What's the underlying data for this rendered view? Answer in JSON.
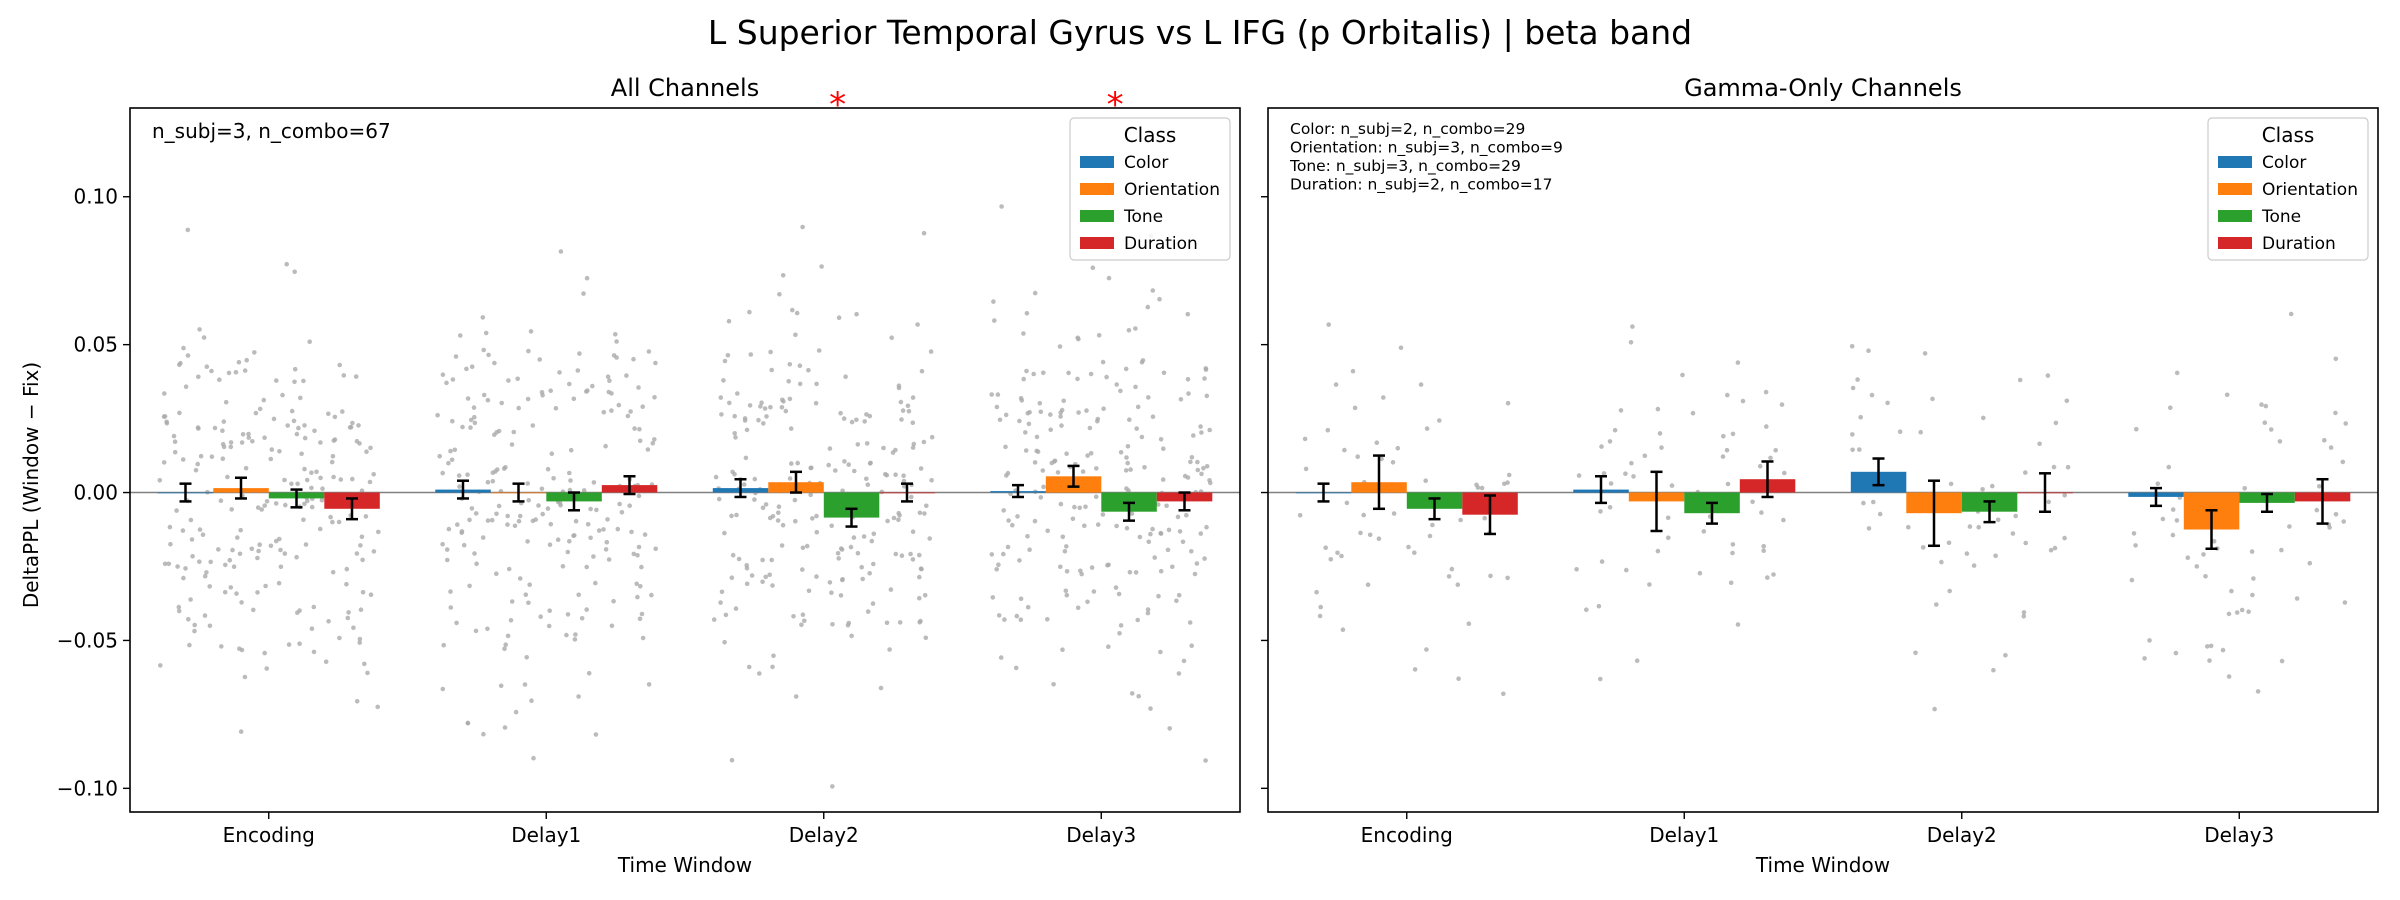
{
  "chart_data": {
    "type": "bar",
    "title": "L Superior Temporal Gyrus vs L IFG (p Orbitalis)  |  beta band",
    "ylabel": "DeltaPPL (Window − Fix)",
    "xlabel": "Time Window",
    "ylim": [
      -0.108,
      0.13
    ],
    "yticks": [
      0.1,
      0.05,
      0.0,
      -0.05,
      -0.1
    ],
    "ytick_labels": [
      "0.10",
      "0.05",
      "0.00",
      "−0.05",
      "−0.10"
    ],
    "categories": [
      "Encoding",
      "Delay1",
      "Delay2",
      "Delay3"
    ],
    "legend": {
      "title": "Class",
      "position": "top-right"
    },
    "series_colors": [
      "#1f77b4",
      "#ff7f0e",
      "#2ca02c",
      "#d62728"
    ],
    "scatter_color": "#aaaaaa",
    "panels": [
      {
        "title": "All Channels",
        "annotation_lines": [
          "n_subj=3, n_combo=67"
        ],
        "significance_marker": "*",
        "significant_categories": [
          "Delay2",
          "Delay3"
        ],
        "series": [
          {
            "name": "Color",
            "values": [
              0.0,
              0.001,
              0.0015,
              0.0005
            ],
            "errors": [
              0.003,
              0.003,
              0.003,
              0.002
            ]
          },
          {
            "name": "Orientation",
            "values": [
              0.0015,
              0.0,
              0.0035,
              0.0055
            ],
            "errors": [
              0.0035,
              0.003,
              0.0035,
              0.0035
            ]
          },
          {
            "name": "Tone",
            "values": [
              -0.002,
              -0.003,
              -0.0085,
              -0.0065
            ],
            "errors": [
              0.003,
              0.003,
              0.003,
              0.003
            ]
          },
          {
            "name": "Duration",
            "values": [
              -0.0055,
              0.0025,
              0.0,
              -0.003
            ],
            "errors": [
              0.0035,
              0.003,
              0.003,
              0.003
            ]
          }
        ]
      },
      {
        "title": "Gamma-Only Channels",
        "annotation_lines": [
          "Color: n_subj=2, n_combo=29",
          "Orientation: n_subj=3, n_combo=9",
          "Tone: n_subj=3, n_combo=29",
          "Duration: n_subj=2, n_combo=17"
        ],
        "significance_marker": "*",
        "significant_categories": [],
        "series": [
          {
            "name": "Color",
            "values": [
              0.0,
              0.001,
              0.007,
              -0.0015
            ],
            "errors": [
              0.003,
              0.0045,
              0.0045,
              0.003
            ]
          },
          {
            "name": "Orientation",
            "values": [
              0.0035,
              -0.003,
              -0.007,
              -0.0125
            ],
            "errors": [
              0.009,
              0.01,
              0.011,
              0.0065
            ]
          },
          {
            "name": "Tone",
            "values": [
              -0.0055,
              -0.007,
              -0.0065,
              -0.0035
            ],
            "errors": [
              0.0035,
              0.0035,
              0.0035,
              0.003
            ]
          },
          {
            "name": "Duration",
            "values": [
              -0.0075,
              0.0045,
              0.0,
              -0.003
            ],
            "errors": [
              0.0065,
              0.006,
              0.0065,
              0.0075
            ]
          }
        ]
      }
    ]
  }
}
